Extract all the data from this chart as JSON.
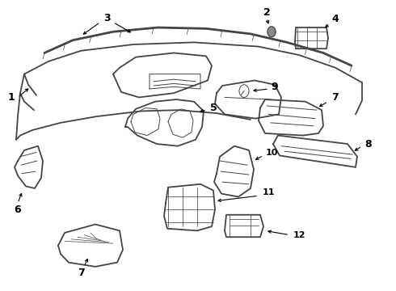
{
  "bg_color": "#ffffff",
  "line_color": "#444444",
  "label_color": "#000000",
  "lw_main": 1.3,
  "lw_thin": 0.7,
  "lw_thick": 2.0
}
